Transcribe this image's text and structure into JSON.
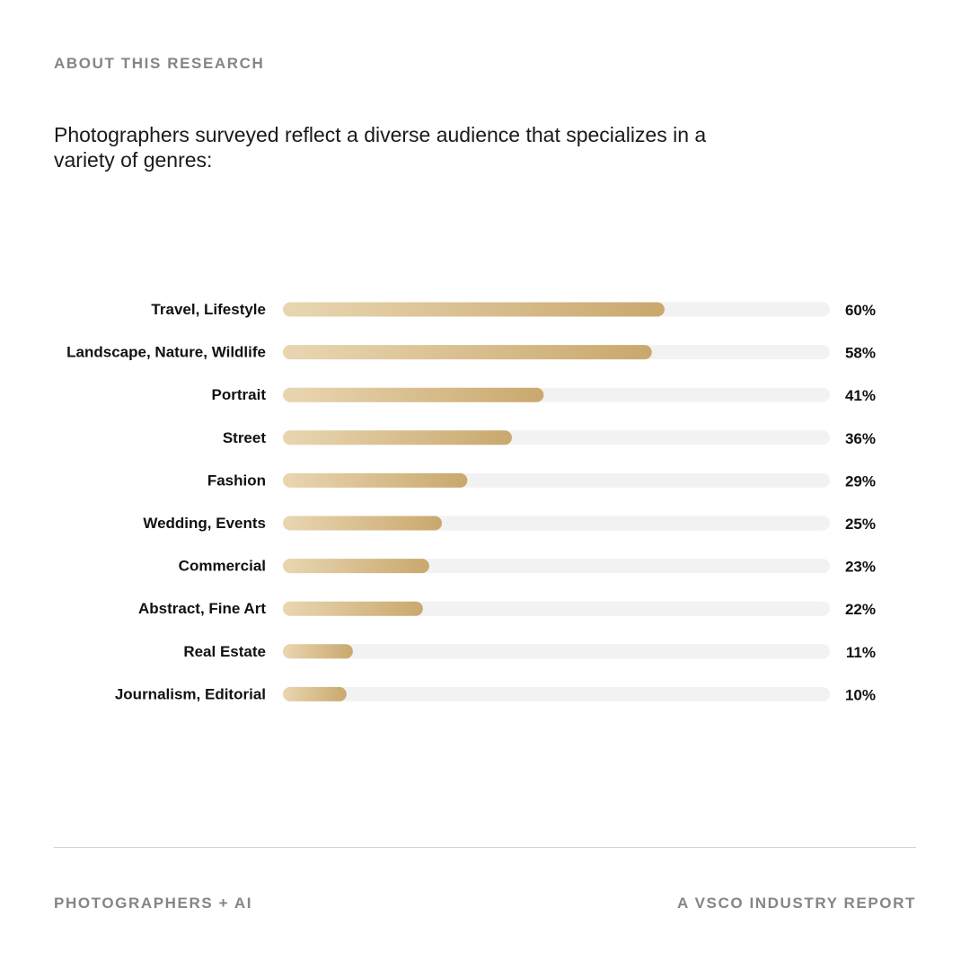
{
  "header": {
    "eyebrow": "ABOUT THIS RESEARCH",
    "intro": "Photographers surveyed reflect a diverse audience that specializes in a variety of genres:"
  },
  "footer": {
    "left": "PHOTOGRAPHERS + AI",
    "right": "A VSCO INDUSTRY REPORT"
  },
  "colors": {
    "bar_start": "#e9d6b1",
    "bar_end": "#c9a86d",
    "track": "#f2f2f2",
    "text": "#111111",
    "muted": "#858585"
  },
  "chart_data": {
    "type": "bar",
    "orientation": "horizontal",
    "categories": [
      "Travel, Lifestyle",
      "Landscape, Nature, Wildlife",
      "Portrait",
      "Street",
      "Fashion",
      "Wedding, Events",
      "Commercial",
      "Abstract, Fine Art",
      "Real Estate",
      "Journalism, Editorial"
    ],
    "values": [
      60,
      58,
      41,
      36,
      29,
      25,
      23,
      22,
      11,
      10
    ],
    "value_labels": [
      "60%",
      "58%",
      "41%",
      "36%",
      "29%",
      "25%",
      "23%",
      "22%",
      "11%",
      "10%"
    ],
    "unit": "%",
    "xlim": [
      0,
      86
    ],
    "grid": false,
    "legend": "none"
  }
}
